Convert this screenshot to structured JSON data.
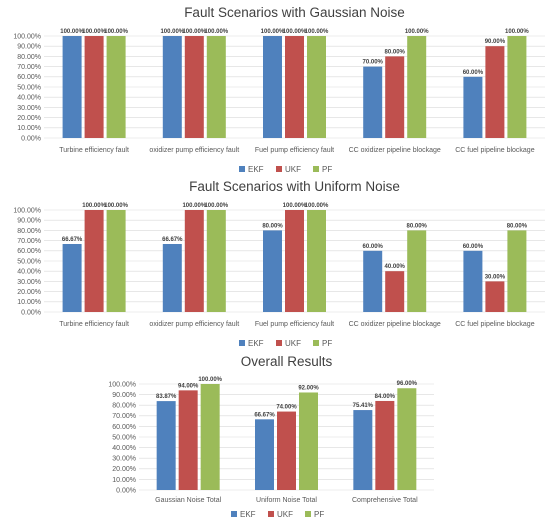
{
  "colors": {
    "EKF": "#4f81bd",
    "UKF": "#c0504d",
    "PF": "#9bbb59"
  },
  "chart_data": [
    {
      "type": "bar",
      "title": "Fault Scenarios with Gaussian Noise",
      "categories": [
        "Turbine efficiency fault",
        "oxidizer pump efficiency fault",
        "Fuel pump efficiency fault",
        "CC oxidizer pipeline blockage",
        "CC fuel pipeline blockage"
      ],
      "series": [
        {
          "name": "EKF",
          "values": [
            100,
            100,
            100,
            70,
            60
          ],
          "labels": [
            "100.00%",
            "100.00%",
            "100.00%",
            "70.00%",
            "60.00%"
          ]
        },
        {
          "name": "UKF",
          "values": [
            100,
            100,
            100,
            80,
            90
          ],
          "labels": [
            "100.00%",
            "100.00%",
            "100.00%",
            "80.00%",
            "90.00%"
          ]
        },
        {
          "name": "PF",
          "values": [
            100,
            100,
            100,
            100,
            100
          ],
          "labels": [
            "100.00%",
            "100.00%",
            "100.00%",
            "100.00%",
            "100.00%"
          ]
        }
      ],
      "ylim": [
        0,
        100
      ],
      "yticks": [
        "0.00%",
        "10.00%",
        "20.00%",
        "30.00%",
        "40.00%",
        "50.00%",
        "60.00%",
        "70.00%",
        "80.00%",
        "90.00%",
        "100.00%"
      ],
      "grid": true,
      "legend": "bottom"
    },
    {
      "type": "bar",
      "title": "Fault Scenarios with Uniform Noise",
      "categories": [
        "Turbine efficiency fault",
        "oxidizer pump efficiency fault",
        "Fuel pump efficiency fault",
        "CC oxidizer pipeline blockage",
        "CC fuel pipeline blockage"
      ],
      "series": [
        {
          "name": "EKF",
          "values": [
            66.67,
            66.67,
            80,
            60,
            60
          ],
          "labels": [
            "66.67%",
            "66.67%",
            "80.00%",
            "60.00%",
            "60.00%"
          ]
        },
        {
          "name": "UKF",
          "values": [
            100,
            100,
            100,
            40,
            30
          ],
          "labels": [
            "100.00%",
            "100.00%",
            "100.00%",
            "40.00%",
            "30.00%"
          ]
        },
        {
          "name": "PF",
          "values": [
            100,
            100,
            100,
            80,
            80
          ],
          "labels": [
            "100.00%",
            "100.00%",
            "100.00%",
            "80.00%",
            "80.00%"
          ]
        }
      ],
      "ylim": [
        0,
        100
      ],
      "yticks": [
        "0.00%",
        "10.00%",
        "20.00%",
        "30.00%",
        "40.00%",
        "50.00%",
        "60.00%",
        "70.00%",
        "80.00%",
        "90.00%",
        "100.00%"
      ],
      "grid": true,
      "legend": "bottom"
    },
    {
      "type": "bar",
      "title": "Overall Results",
      "categories": [
        "Gaussian Noise Total",
        "Uniform Noise Total",
        "Comprehensive Total"
      ],
      "series": [
        {
          "name": "EKF",
          "values": [
            83.87,
            66.67,
            75.41
          ],
          "labels": [
            "83.87%",
            "66.67%",
            "75.41%"
          ]
        },
        {
          "name": "UKF",
          "values": [
            94,
            74,
            84
          ],
          "labels": [
            "94.00%",
            "74.00%",
            "84.00%"
          ]
        },
        {
          "name": "PF",
          "values": [
            100,
            92,
            96
          ],
          "labels": [
            "100.00%",
            "92.00%",
            "96.00%"
          ]
        }
      ],
      "ylim": [
        0,
        100
      ],
      "yticks": [
        "0.00%",
        "10.00%",
        "20.00%",
        "30.00%",
        "40.00%",
        "50.00%",
        "60.00%",
        "70.00%",
        "80.00%",
        "90.00%",
        "100.00%"
      ],
      "grid": true,
      "legend": "bottom"
    }
  ]
}
